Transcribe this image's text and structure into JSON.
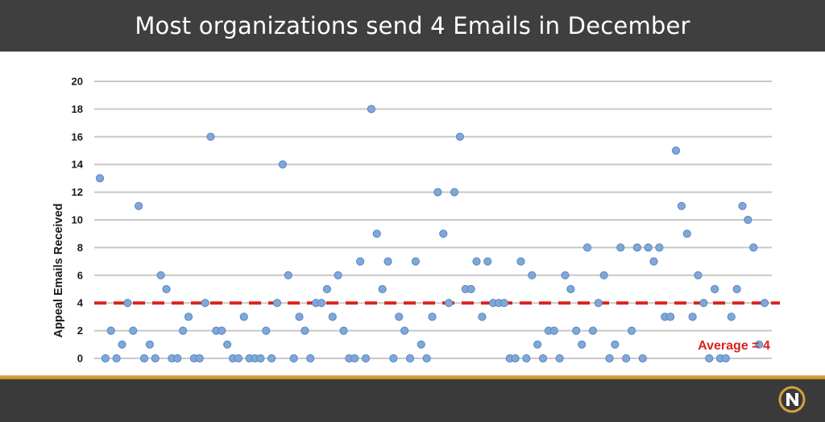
{
  "header": {
    "title": "Most organizations send 4 Emails in December"
  },
  "colors": {
    "header_bg": "#3f3f3f",
    "footer_bg": "#3a3a3a",
    "footer_accent": "#d4a13a",
    "point_fill": "#7fa8d9",
    "point_stroke": "#5b86bf",
    "average_line": "#d9231e",
    "average_label": "#d9231e",
    "grid": "#c8c8c8"
  },
  "logo": {
    "icon": "nucleus-n-logo"
  },
  "chart_data": {
    "type": "scatter",
    "title": "Most organizations send 4 Emails in December",
    "ylabel": "Appeal Emails Received",
    "xlabel": "",
    "ylim": [
      0,
      20
    ],
    "yticks": [
      "0",
      "2",
      "4",
      "6",
      "8",
      "10",
      "12",
      "14",
      "16",
      "18",
      "20"
    ],
    "grid": true,
    "legend": "none",
    "series": [
      {
        "values": [
          13,
          0,
          2,
          0,
          1,
          4,
          2,
          11,
          0,
          1,
          0,
          6,
          5,
          0,
          0,
          2,
          3,
          0,
          0,
          4,
          16,
          2,
          2,
          1,
          0,
          0,
          3,
          0,
          0,
          0,
          2,
          0,
          4,
          14,
          6,
          0,
          3,
          2,
          0,
          4,
          4,
          5,
          3,
          6,
          2,
          0,
          0,
          7,
          0,
          18,
          9,
          5,
          7,
          0,
          3,
          2,
          0,
          7,
          1,
          0,
          3,
          12,
          9,
          4,
          12,
          16,
          5,
          5,
          7,
          3,
          7,
          4,
          4,
          4,
          0,
          0,
          7,
          0,
          6,
          1,
          0,
          2,
          2,
          0,
          6,
          5,
          2,
          1,
          8,
          2,
          4,
          6,
          0,
          1,
          8,
          0,
          2,
          8,
          0,
          8,
          7,
          8,
          3,
          3,
          15,
          11,
          9,
          3,
          6,
          4,
          0,
          5,
          0,
          0,
          3,
          5,
          11,
          10,
          8,
          1,
          4
        ]
      }
    ],
    "reference_line": {
      "y": 4,
      "label": "Average = 4",
      "style": "dashed"
    }
  }
}
